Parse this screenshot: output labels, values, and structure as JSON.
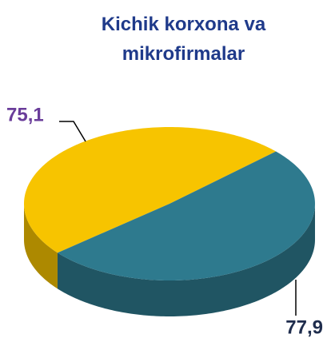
{
  "chart_data": {
    "type": "pie",
    "title": "Kichik korxona va mikrofirmalar",
    "categories": [
      null,
      null
    ],
    "values": [
      75.1,
      77.9
    ],
    "value_labels": [
      "75,1",
      "77,9"
    ],
    "colors": [
      "#f7c400",
      "#2e7a8e"
    ]
  }
}
